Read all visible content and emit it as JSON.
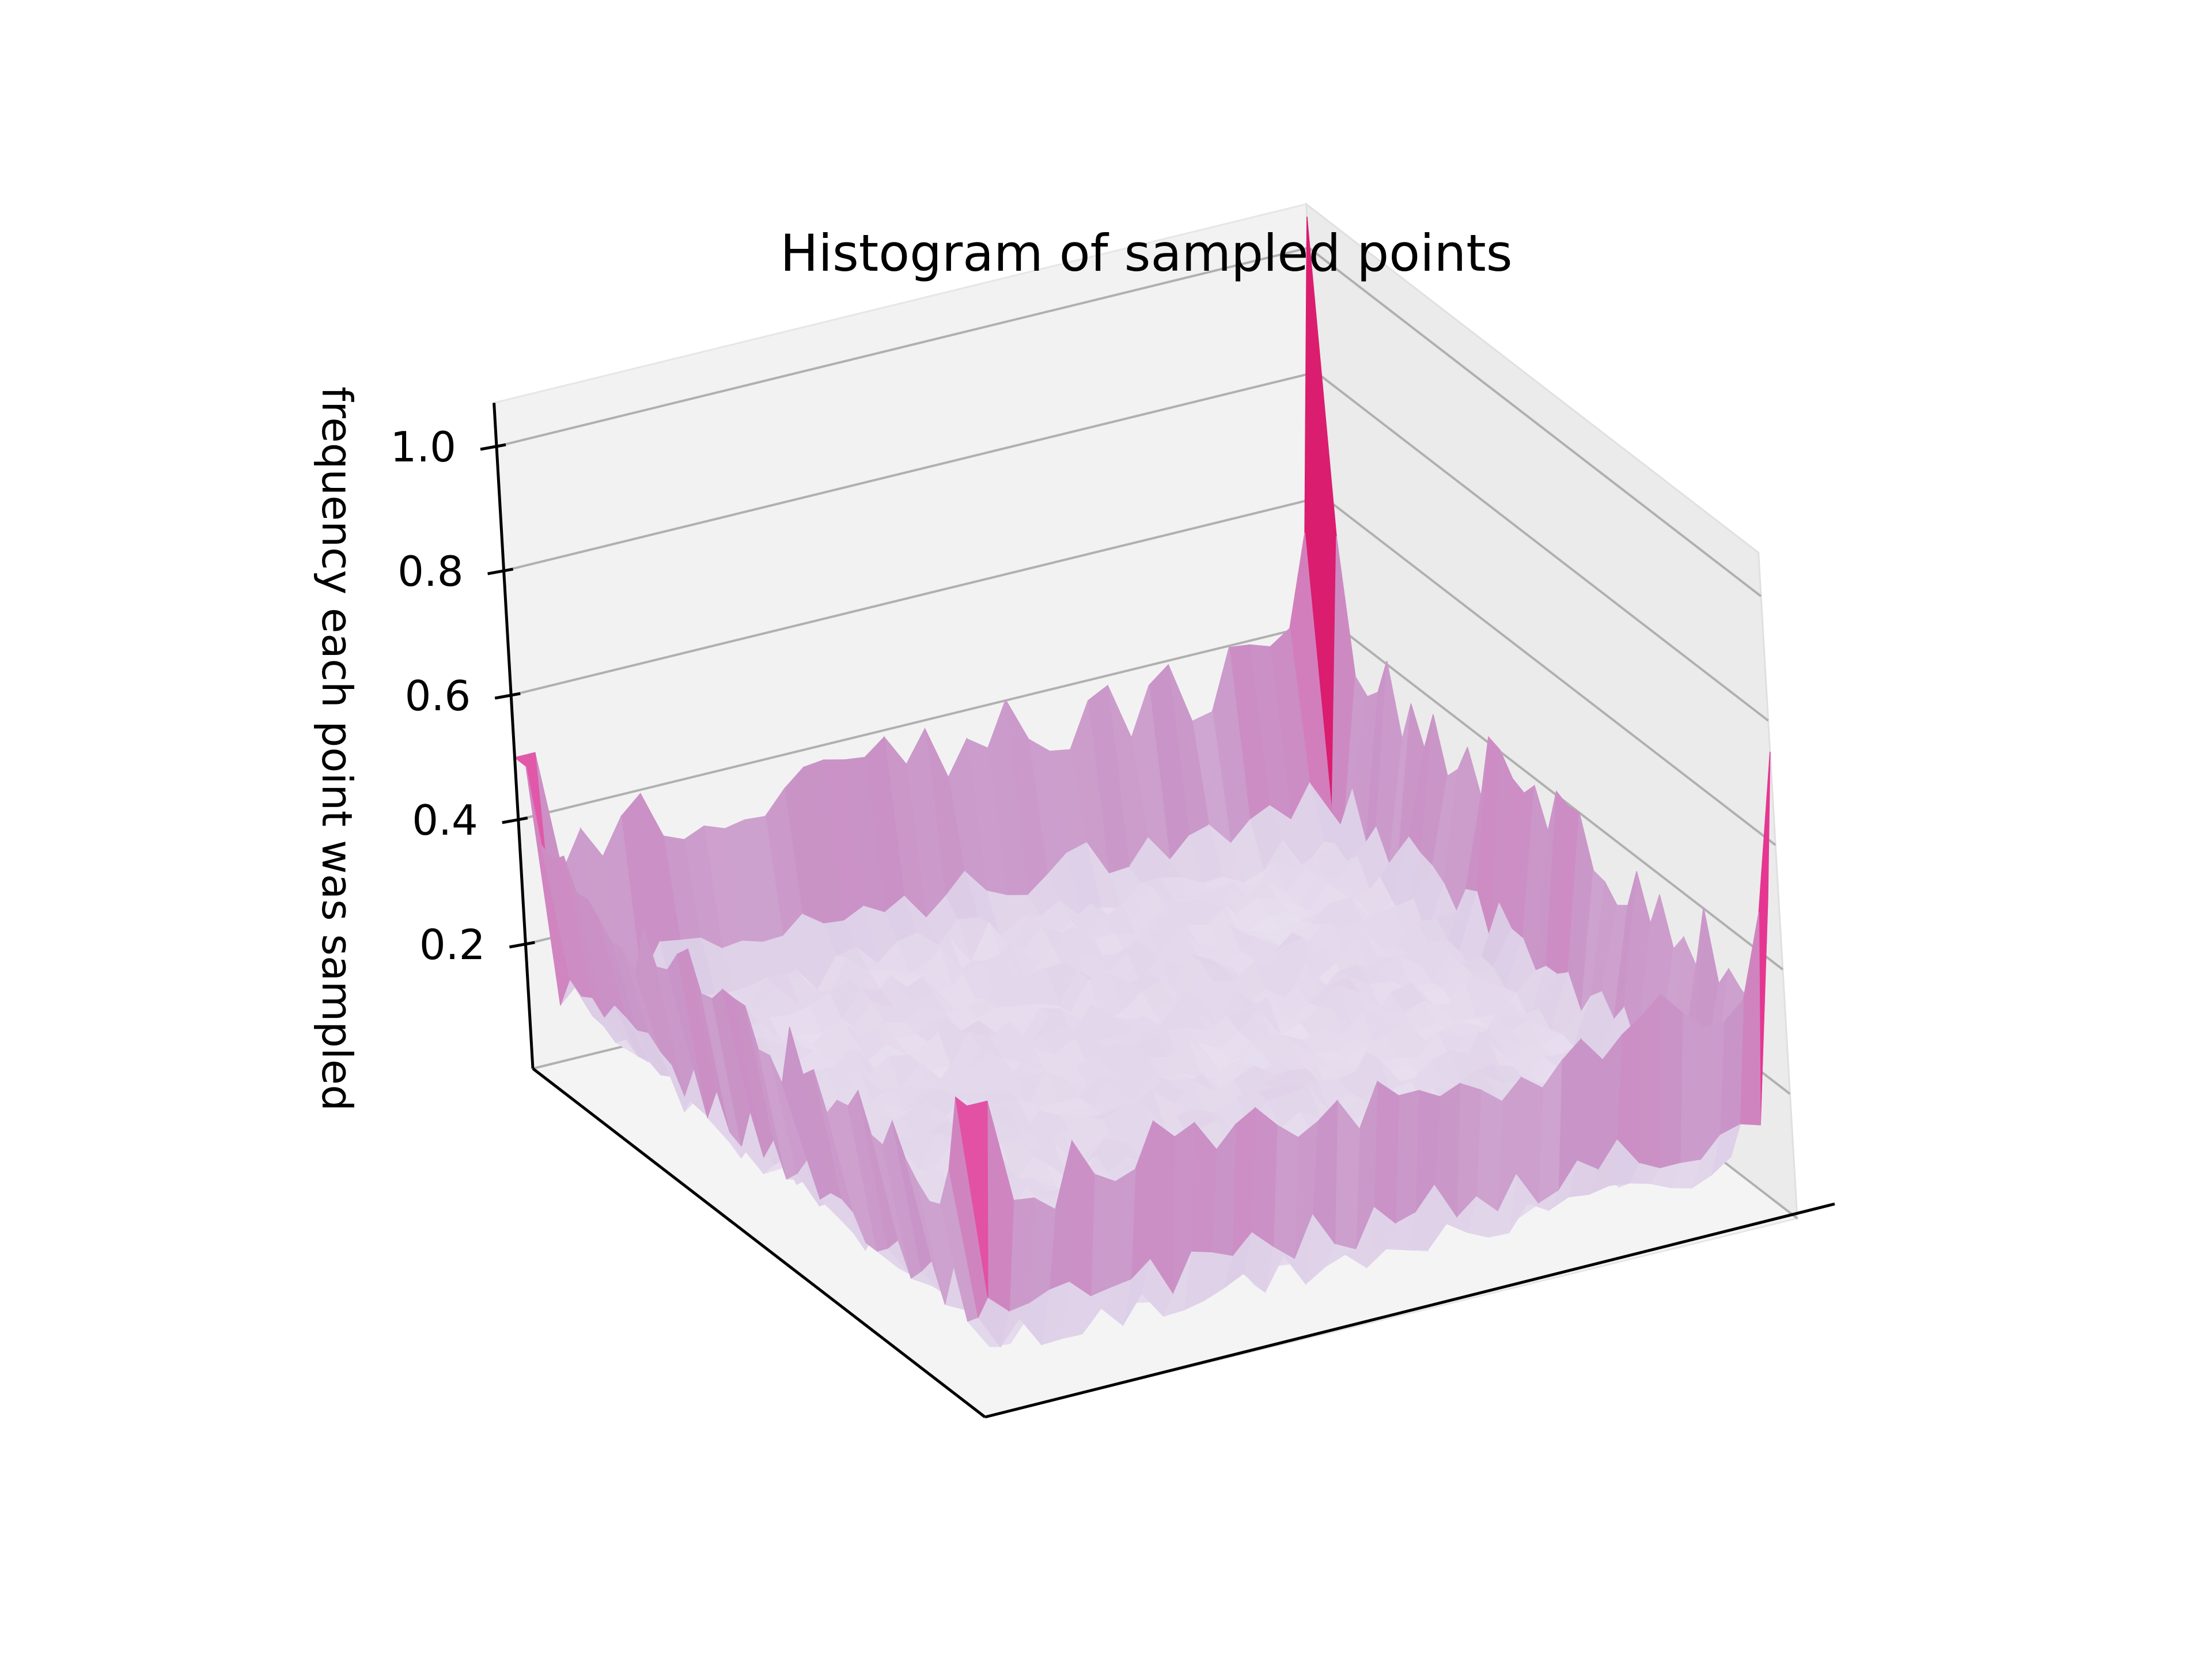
{
  "chart_data": {
    "type": "surface3d",
    "title": "Histogram of sampled points",
    "xlabel": "",
    "ylabel": "",
    "zlabel": "frequency each point was sampled",
    "x_tick_labels": [],
    "y_tick_labels": [],
    "z_ticks": [
      0.2,
      0.4,
      0.6,
      0.8,
      1.0
    ],
    "z_tick_labels": [
      "0.2",
      "0.4",
      "0.6",
      "0.8",
      "1.0"
    ],
    "zlim": [
      0.0,
      1.0
    ],
    "grid": true,
    "grid_size": 40,
    "description": "",
    "features": {
      "interior_level": 0.08,
      "edge_level": 0.35,
      "corner_level": 0.5,
      "corner_spikes": [
        {
          "corner": "back",
          "value": 1.05
        },
        {
          "corner": "right",
          "value": 0.75
        }
      ]
    },
    "colormap": [
      "#f2eef6",
      "#dccde6",
      "#c994c7",
      "#df65b0",
      "#e7298a",
      "#ce1256",
      "#67001f"
    ],
    "pane_color": "#f2f2f2",
    "grid_color": "#b0b0b0"
  }
}
